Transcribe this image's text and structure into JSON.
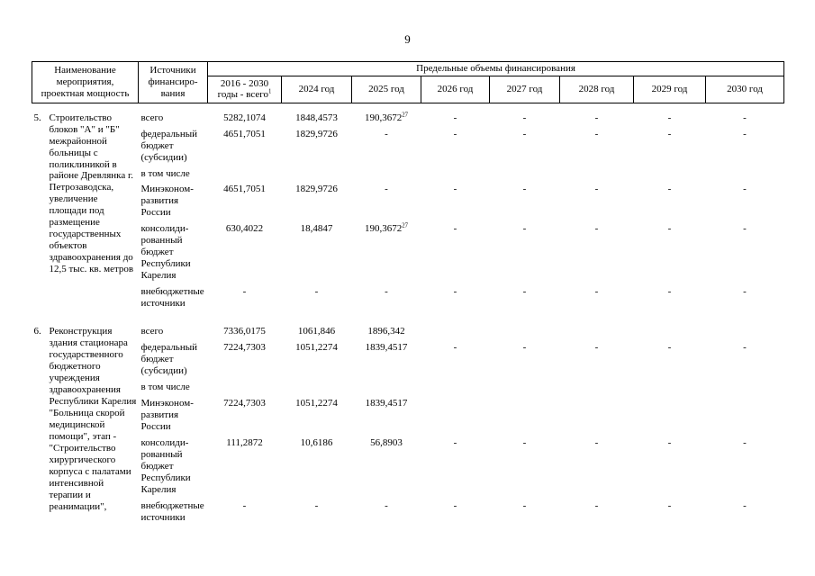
{
  "page": {
    "number": "9"
  },
  "table": {
    "header": {
      "name_col": "Наименование мероприятия, проектная мощность",
      "sources_col": "Источники финансиро-вания",
      "group": "Предельные объемы финансирования",
      "years": [
        "2016 - 2030 годы - всего^1",
        "2024 год",
        "2025 год",
        "2026 год",
        "2027 год",
        "2028 год",
        "2029 год",
        "2030 год"
      ]
    },
    "items": [
      {
        "num": "5.",
        "name": "Строительство блоков \"А\" и \"Б\" межрайонной больницы с поликлиникой в районе Древлянка г. Петрозаводска, увеличение площади под размещение государственных объектов здравоохранения до 12,5 тыс. кв. метров",
        "rows": [
          {
            "source": "всего",
            "values": [
              "5282,1074",
              "1848,4573",
              "190,3672^27",
              "-",
              "-",
              "-",
              "-",
              "-"
            ]
          },
          {
            "source": "федеральный бюджет (субсидии)",
            "values": [
              "4651,7051",
              "1829,9726",
              "-",
              "-",
              "-",
              "-",
              "-",
              "-"
            ]
          },
          {
            "source": "в том числе",
            "values": null
          },
          {
            "source": "Минэконом-развития России",
            "values": [
              "4651,7051",
              "1829,9726",
              "-",
              "-",
              "-",
              "-",
              "-",
              "-"
            ]
          },
          {
            "source": "консолиди-рованный бюджет Республики Карелия",
            "values": [
              "630,4022",
              "18,4847",
              "190,3672^27",
              "-",
              "-",
              "-",
              "-",
              "-"
            ]
          },
          {
            "source": "внебюджетные источники",
            "values": [
              "-",
              "-",
              "-",
              "-",
              "-",
              "-",
              "-",
              "-"
            ]
          }
        ]
      },
      {
        "num": "6.",
        "name": "Реконструкция здания стационара государственного бюджетного учреждения здравоохранения Республики Карелия \"Больница скорой медицинской помощи\", этап - \"Строительство хирургического корпуса с палатами интенсивной терапии и реанимации\",",
        "rows": [
          {
            "source": "всего",
            "values": [
              "7336,0175",
              "1061,846",
              "1896,342",
              "",
              "",
              "",
              "",
              ""
            ]
          },
          {
            "source": "федеральный бюджет (субсидии)",
            "values": [
              "7224,7303",
              "1051,2274",
              "1839,4517",
              "-",
              "-",
              "-",
              "-",
              "-"
            ]
          },
          {
            "source": "в том числе",
            "values": null
          },
          {
            "source": "Минэконом-развития России",
            "values": [
              "7224,7303",
              "1051,2274",
              "1839,4517",
              "",
              "",
              "",
              "",
              ""
            ]
          },
          {
            "source": "консолиди-рованный бюджет Республики Карелия",
            "values": [
              "111,2872",
              "10,6186",
              "56,8903",
              "-",
              "-",
              "-",
              "-",
              "-"
            ]
          },
          {
            "source": "внебюджетные источники",
            "values": [
              "-",
              "-",
              "-",
              "-",
              "-",
              "-",
              "-",
              "-"
            ]
          }
        ]
      }
    ]
  }
}
